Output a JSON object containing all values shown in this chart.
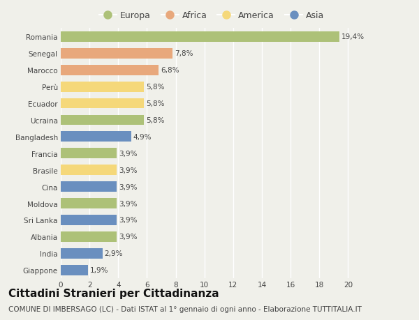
{
  "countries": [
    "Romania",
    "Senegal",
    "Marocco",
    "Perù",
    "Ecuador",
    "Ucraina",
    "Bangladesh",
    "Francia",
    "Brasile",
    "Cina",
    "Moldova",
    "Sri Lanka",
    "Albania",
    "India",
    "Giappone"
  ],
  "values": [
    19.4,
    7.8,
    6.8,
    5.8,
    5.8,
    5.8,
    4.9,
    3.9,
    3.9,
    3.9,
    3.9,
    3.9,
    3.9,
    2.9,
    1.9
  ],
  "labels": [
    "19,4%",
    "7,8%",
    "6,8%",
    "5,8%",
    "5,8%",
    "5,8%",
    "4,9%",
    "3,9%",
    "3,9%",
    "3,9%",
    "3,9%",
    "3,9%",
    "3,9%",
    "2,9%",
    "1,9%"
  ],
  "continents": [
    "Europa",
    "Africa",
    "Africa",
    "America",
    "America",
    "Europa",
    "Asia",
    "Europa",
    "America",
    "Asia",
    "Europa",
    "Asia",
    "Europa",
    "Asia",
    "Asia"
  ],
  "continent_colors": {
    "Europa": "#adc178",
    "Africa": "#e8a87c",
    "America": "#f5d87a",
    "Asia": "#6a8fbf"
  },
  "legend_order": [
    "Europa",
    "Africa",
    "America",
    "Asia"
  ],
  "xlim": [
    0,
    21
  ],
  "xticks": [
    0,
    2,
    4,
    6,
    8,
    10,
    12,
    14,
    16,
    18,
    20
  ],
  "title": "Cittadini Stranieri per Cittadinanza",
  "subtitle": "COMUNE DI IMBERSAGO (LC) - Dati ISTAT al 1° gennaio di ogni anno - Elaborazione TUTTITALIA.IT",
  "bg_color": "#f0f0ea",
  "grid_color": "#ffffff",
  "bar_height": 0.62,
  "title_fontsize": 11,
  "subtitle_fontsize": 7.5,
  "label_fontsize": 7.5,
  "tick_fontsize": 7.5,
  "legend_fontsize": 9
}
